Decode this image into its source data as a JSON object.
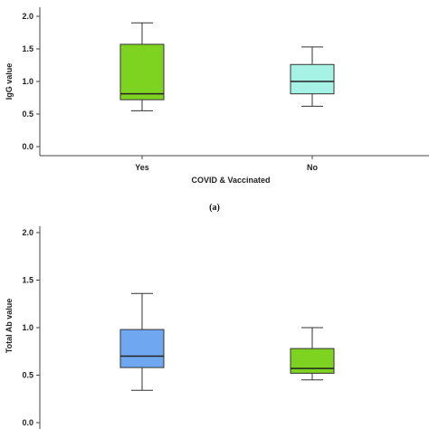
{
  "chart_data": [
    {
      "type": "box",
      "panel_label": "(a)",
      "ylabel": "IgG value",
      "xlabel": "COVID & Vaccinated",
      "ylim": [
        0,
        2.0
      ],
      "yticks": [
        "0.0",
        "0.5",
        "1.0",
        "1.5",
        "2.0"
      ],
      "grid": false,
      "categories": [
        "Yes",
        "No"
      ],
      "boxes": [
        {
          "category": "Yes",
          "min": 0.55,
          "q1": 0.72,
          "median": 0.81,
          "q3": 1.57,
          "max": 1.9,
          "color": "#7ed321"
        },
        {
          "category": "No",
          "min": 0.62,
          "q1": 0.81,
          "median": 1.0,
          "q3": 1.26,
          "max": 1.53,
          "color": "#a6f3e6"
        }
      ]
    },
    {
      "type": "box",
      "ylabel": "Total Ab value",
      "ylim": [
        0,
        2.0
      ],
      "yticks": [
        "0.0",
        "0.5",
        "1.0",
        "1.5",
        "2.0"
      ],
      "grid": false,
      "categories": [
        "",
        ""
      ],
      "boxes": [
        {
          "min": 0.34,
          "q1": 0.58,
          "median": 0.7,
          "q3": 0.98,
          "max": 1.36,
          "color": "#6fa8f0"
        },
        {
          "min": 0.45,
          "q1": 0.52,
          "median": 0.57,
          "q3": 0.78,
          "max": 1.0,
          "color": "#7ed321"
        }
      ]
    }
  ]
}
